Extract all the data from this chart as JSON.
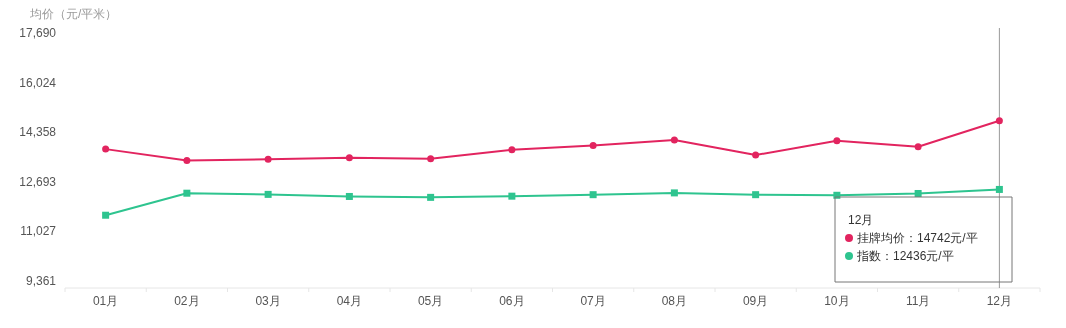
{
  "chart_data": {
    "type": "line",
    "ylabel": "均价（元/平米）",
    "categories": [
      "01月",
      "02月",
      "03月",
      "04月",
      "05月",
      "06月",
      "07月",
      "08月",
      "09月",
      "10月",
      "11月",
      "12月"
    ],
    "series": [
      {
        "name": "挂牌均价",
        "color": "#e2245f",
        "marker": "circle",
        "values": [
          13790,
          13410,
          13450,
          13500,
          13470,
          13770,
          13910,
          14100,
          13590,
          14070,
          13870,
          14742
        ]
      },
      {
        "name": "指数",
        "color": "#2ec48f",
        "marker": "square",
        "values": [
          11570,
          12310,
          12270,
          12200,
          12170,
          12210,
          12260,
          12320,
          12260,
          12240,
          12300,
          12436
        ]
      }
    ],
    "ylim": [
      9361,
      17690
    ],
    "yticks": [
      {
        "value": 9361,
        "label": "9,361"
      },
      {
        "value": 11027,
        "label": "11,027"
      },
      {
        "value": 12693,
        "label": "12,693"
      },
      {
        "value": 14358,
        "label": "14,358"
      },
      {
        "value": 16024,
        "label": "16,024"
      },
      {
        "value": 17690,
        "label": "17,690"
      }
    ],
    "ref_lines": [
      {
        "axis": "x",
        "value": "12月",
        "color": "#999999"
      }
    ],
    "annotations": [
      "12月",
      "：14742元/平",
      "：12436元/平"
    ],
    "grid": false,
    "legend": "bottom right"
  }
}
